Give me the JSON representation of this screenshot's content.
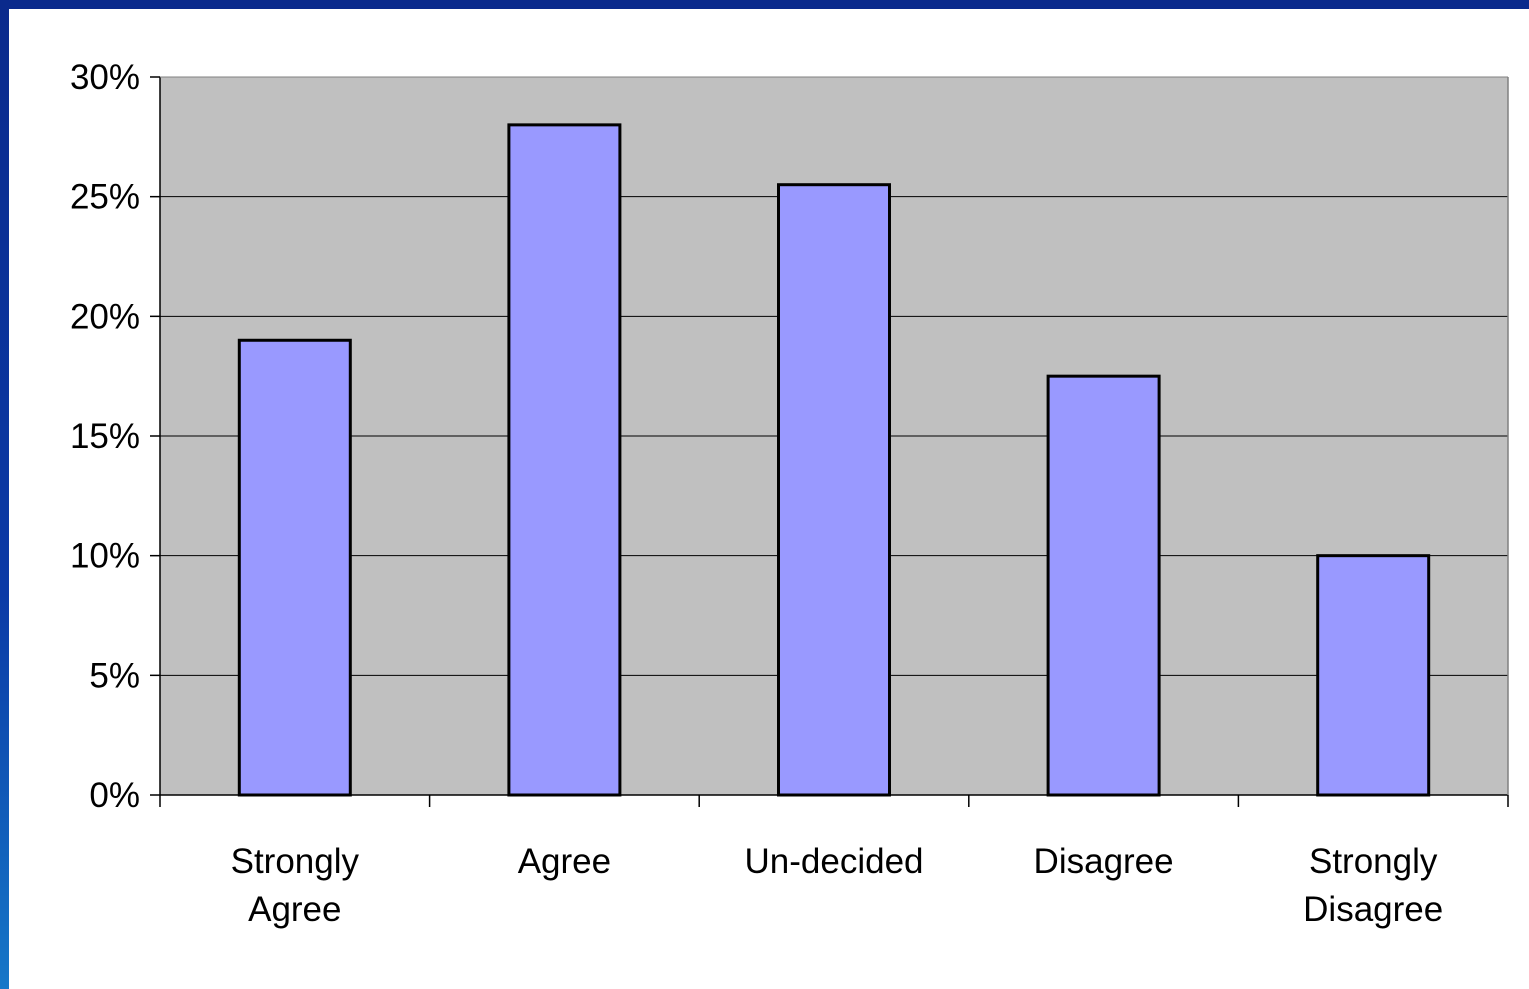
{
  "chart_data": {
    "type": "bar",
    "title": "",
    "xlabel": "",
    "ylabel": "",
    "categories": [
      [
        "Strongly",
        "Agree"
      ],
      [
        "Agree"
      ],
      [
        "Un-decided"
      ],
      [
        "Disagree"
      ],
      [
        "Strongly",
        "Disagree"
      ]
    ],
    "values": [
      19,
      28,
      25.5,
      17.5,
      10
    ],
    "ylim": [
      0,
      30
    ],
    "yticks": [
      0,
      5,
      10,
      15,
      20,
      25,
      30
    ],
    "ytick_labels": [
      "0%",
      "5%",
      "10%",
      "15%",
      "20%",
      "25%",
      "30%"
    ],
    "grid": true,
    "legend": "none",
    "colors": {
      "bar": "#9999ff",
      "bar_edge": "#000000",
      "plot_background": "#c0c0c0",
      "gridline": "#000000"
    }
  }
}
